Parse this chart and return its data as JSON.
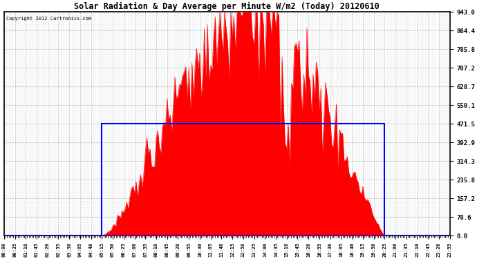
{
  "title": "Solar Radiation & Day Average per Minute W/m2 (Today) 20120610",
  "copyright": "Copyright 2012 Cartronics.com",
  "y_max": 943.0,
  "y_min": 0.0,
  "y_ticks": [
    0.0,
    78.6,
    157.2,
    235.8,
    314.3,
    392.9,
    471.5,
    550.1,
    628.7,
    707.2,
    785.8,
    864.4,
    943.0
  ],
  "y_tick_labels": [
    "0.0",
    "78.6",
    "157.2",
    "235.8",
    "314.3",
    "392.9",
    "471.5",
    "550.1",
    "628.7",
    "707.2",
    "785.8",
    "864.4",
    "943.0"
  ],
  "solar_color": "#FF0000",
  "avg_box_color": "#0000FF",
  "background_color": "#FFFFFF",
  "plot_bg_color": "#FFFFFF",
  "grid_color": "#888888",
  "avg_value": 471.5,
  "sunrise_minute": 315,
  "sunset_minute": 1225,
  "peak_minute": 810,
  "total_points": 288
}
